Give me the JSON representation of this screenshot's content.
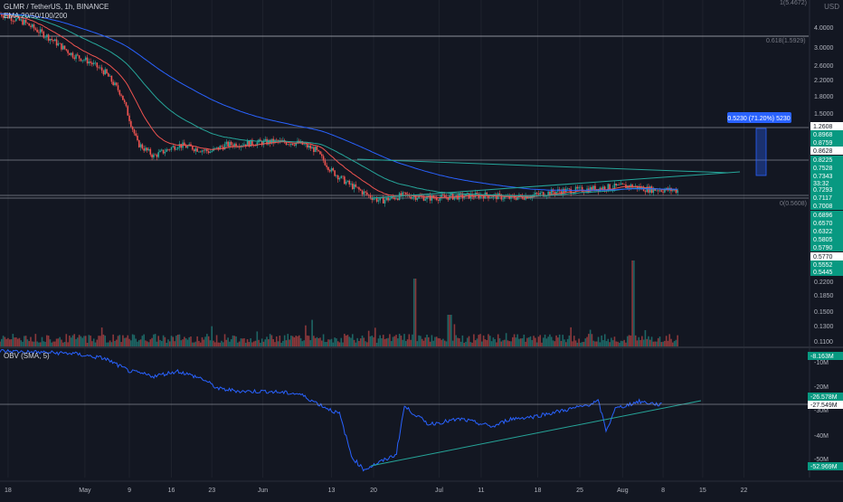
{
  "header": {
    "symbol_line": "GLMR / TetherUS, 1h, BINANCE",
    "indicator_line": "EMA 20/50/100/200",
    "currency": "USD",
    "top_fib": "1(5.4672)"
  },
  "obv_pane": {
    "label": "OBV (SMA, 5)"
  },
  "colors": {
    "background": "#131722",
    "up": "#26a69a",
    "down": "#ef5350",
    "ema20": "#ef5350",
    "ema50": "#26a69a",
    "ema100": "#2962ff",
    "obv": "#2962ff",
    "trendline": "#26a69a"
  },
  "chart_data": [
    {
      "type": "candlestick",
      "scale": "log",
      "y_ticks": [
        "4.0000",
        "3.0000",
        "2.6000",
        "2.2000",
        "1.8000",
        "1.5000",
        "0.2200",
        "0.1850",
        "0.1500",
        "0.1300",
        "0.1100"
      ],
      "x_ticks": [
        "18",
        "May",
        "9",
        "16",
        "23",
        "Jun",
        "13",
        "20",
        "Jul",
        "11",
        "18",
        "25",
        "Aug",
        "8",
        "15",
        "22"
      ],
      "x_tick_pos": [
        0.01,
        0.105,
        0.16,
        0.212,
        0.262,
        0.325,
        0.41,
        0.462,
        0.543,
        0.595,
        0.665,
        0.717,
        0.77,
        0.82,
        0.869,
        0.92
      ],
      "price_path": [
        [
          0,
          4.6
        ],
        [
          0.03,
          4.2
        ],
        [
          0.06,
          3.6
        ],
        [
          0.09,
          3.0
        ],
        [
          0.11,
          2.8
        ],
        [
          0.13,
          2.5
        ],
        [
          0.15,
          2.0
        ],
        [
          0.17,
          1.2
        ],
        [
          0.19,
          1.05
        ],
        [
          0.22,
          1.18
        ],
        [
          0.26,
          1.1
        ],
        [
          0.28,
          1.18
        ],
        [
          0.31,
          1.2
        ],
        [
          0.34,
          1.22
        ],
        [
          0.37,
          1.2
        ],
        [
          0.39,
          1.12
        ],
        [
          0.41,
          0.9
        ],
        [
          0.43,
          0.79
        ],
        [
          0.455,
          0.7
        ],
        [
          0.47,
          0.66
        ],
        [
          0.5,
          0.7
        ],
        [
          0.53,
          0.68
        ],
        [
          0.56,
          0.69
        ],
        [
          0.6,
          0.7
        ],
        [
          0.63,
          0.68
        ],
        [
          0.66,
          0.7
        ],
        [
          0.69,
          0.73
        ],
        [
          0.72,
          0.74
        ],
        [
          0.75,
          0.76
        ],
        [
          0.78,
          0.77
        ],
        [
          0.8,
          0.745
        ],
        [
          0.82,
          0.74
        ],
        [
          0.84,
          0.734
        ]
      ],
      "levels": {
        "fib_618": {
          "label": "0.618(1.5929)",
          "value": 1.5929
        },
        "fib_0": {
          "label": "0(0.5608)",
          "value": 0.5608
        }
      },
      "measure_label": "0.5230 (71.20%) 5230",
      "price_labels": [
        {
          "text": "1.2608",
          "style": "white"
        },
        {
          "text": "0.8968",
          "style": "green"
        },
        {
          "text": "0.8759",
          "style": "green"
        },
        {
          "text": "0.8628",
          "style": "white"
        },
        {
          "text": "0.8225",
          "style": "green"
        },
        {
          "text": "0.7528",
          "style": "green"
        },
        {
          "text": "0.7343",
          "style": "green"
        },
        {
          "text": "33:32",
          "style": "green"
        },
        {
          "text": "0.7293",
          "style": "green"
        },
        {
          "text": "0.7117",
          "style": "green"
        },
        {
          "text": "0.7008",
          "style": "green"
        },
        {
          "text": "0.6896",
          "style": "green"
        },
        {
          "text": "0.6570",
          "style": "green"
        },
        {
          "text": "0.6322",
          "style": "green"
        },
        {
          "text": "0.5805",
          "style": "green"
        },
        {
          "text": "0.5790",
          "style": "green"
        },
        {
          "text": "0.5770",
          "style": "white"
        },
        {
          "text": "0.5552",
          "style": "green"
        },
        {
          "text": "0.5445",
          "style": "green"
        }
      ]
    },
    {
      "type": "line",
      "name": "OBV",
      "y_ticks": [
        "-10M",
        "-20M",
        "-30M",
        "-40M",
        "-50M"
      ],
      "obv_path": [
        [
          0,
          -6
        ],
        [
          0.09,
          -7
        ],
        [
          0.13,
          -9
        ],
        [
          0.16,
          -14
        ],
        [
          0.19,
          -16
        ],
        [
          0.22,
          -14
        ],
        [
          0.25,
          -17
        ],
        [
          0.27,
          -21
        ],
        [
          0.3,
          -22
        ],
        [
          0.33,
          -22
        ],
        [
          0.37,
          -23
        ],
        [
          0.4,
          -28
        ],
        [
          0.42,
          -31
        ],
        [
          0.435,
          -48
        ],
        [
          0.45,
          -53
        ],
        [
          0.47,
          -50
        ],
        [
          0.49,
          -47
        ],
        [
          0.5,
          -28
        ],
        [
          0.53,
          -35
        ],
        [
          0.57,
          -33
        ],
        [
          0.61,
          -36
        ],
        [
          0.63,
          -33
        ],
        [
          0.66,
          -32
        ],
        [
          0.69,
          -30
        ],
        [
          0.72,
          -28
        ],
        [
          0.74,
          -26
        ],
        [
          0.75,
          -38
        ],
        [
          0.76,
          -29
        ],
        [
          0.79,
          -26
        ],
        [
          0.82,
          -27.5
        ]
      ],
      "value_labels": [
        {
          "text": "-8.163M",
          "style": "green"
        },
        {
          "text": "-26.578M",
          "style": "green"
        },
        {
          "text": "-27.549M",
          "style": "white"
        },
        {
          "text": "-52.969M",
          "style": "green"
        }
      ]
    }
  ]
}
